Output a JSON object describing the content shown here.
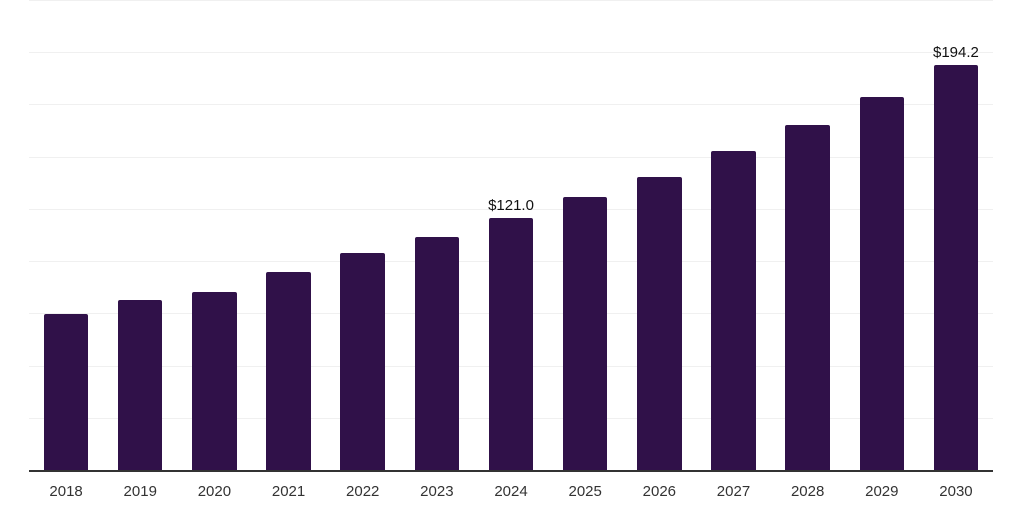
{
  "chart_data": {
    "type": "bar",
    "title": "",
    "xlabel": "",
    "ylabel": "",
    "categories": [
      "2018",
      "2019",
      "2020",
      "2021",
      "2022",
      "2023",
      "2024",
      "2025",
      "2026",
      "2027",
      "2028",
      "2029",
      "2030"
    ],
    "values": [
      75.1,
      81.8,
      85.5,
      95.4,
      104.2,
      112.2,
      121.0,
      131.0,
      140.9,
      153.2,
      165.6,
      179.2,
      194.2
    ],
    "data_labels": [
      "",
      "",
      "",
      "",
      "",
      "",
      "$121.0",
      "",
      "",
      "",
      "",
      "",
      "$194.2"
    ],
    "ylim": [
      0,
      225
    ],
    "grid_step": 25,
    "grid": "horizontal",
    "legend_position": "none",
    "y_axis_tick_labels_visible": false,
    "colors": {
      "bar": "#301149",
      "grid": "#f0f0f0",
      "axis": "#333333",
      "tick_label": "#333333",
      "data_label": "#111111",
      "background": "#ffffff"
    }
  }
}
